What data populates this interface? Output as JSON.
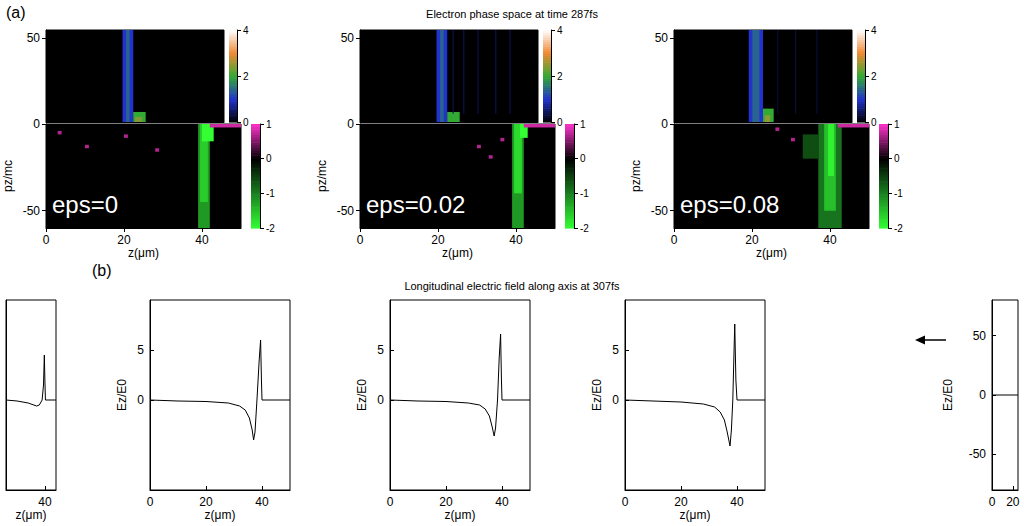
{
  "figure": {
    "panels": [
      {
        "letter": "(a)",
        "title": "Electron phase space at time 287fs"
      },
      {
        "letter": "(b)",
        "title": "Longitudinal electric field along axis at 307fs"
      }
    ]
  },
  "chart_data": [
    {
      "type": "heatmap",
      "annotation": "eps=0",
      "xlabel": "z(μm)",
      "ylabel": "pz/mc",
      "xlim": [
        0,
        50
      ],
      "xticks": [
        0,
        20,
        40
      ],
      "upper": {
        "ylim": [
          0,
          55
        ],
        "yticks": [
          50
        ],
        "cells": [
          [
            21.5,
            24.5,
            0,
            55,
            1.0
          ],
          [
            22.5,
            23.5,
            0,
            55,
            1.4
          ],
          [
            24.5,
            28,
            0,
            6,
            2.0
          ],
          [
            25,
            27,
            0,
            3,
            2.4
          ]
        ],
        "colorbar": {
          "range": [
            0,
            4
          ],
          "ticks": [
            0,
            2,
            4
          ]
        }
      },
      "lower": {
        "ylim": [
          -60,
          0
        ],
        "yticks": [
          -50,
          0
        ],
        "cells": [
          [
            39,
            42,
            -60,
            0,
            -1.2
          ],
          [
            39.5,
            41.5,
            -45,
            0,
            -1.6
          ],
          [
            40,
            43,
            -10,
            0,
            -2
          ],
          [
            42,
            50,
            -2,
            0,
            0.8
          ],
          [
            3,
            4,
            -6,
            -4,
            0.7
          ],
          [
            10,
            11,
            -14,
            -12,
            0.7
          ],
          [
            20,
            21,
            -8,
            -6,
            0.7
          ],
          [
            28,
            29,
            -16,
            -14,
            0.7
          ]
        ],
        "colorbar": {
          "range": [
            -2,
            1
          ],
          "ticks": [
            -2,
            -1,
            0,
            1
          ]
        }
      }
    },
    {
      "type": "heatmap",
      "annotation": "eps=0.02",
      "xlabel": "z(μm)",
      "ylabel": "pz/mc",
      "xlim": [
        0,
        50
      ],
      "xticks": [
        0,
        20,
        40
      ],
      "upper": {
        "ylim": [
          0,
          55
        ],
        "yticks": [
          50
        ],
        "cells": [
          [
            21.5,
            24.5,
            0,
            55,
            1.0
          ],
          [
            22.5,
            23.5,
            0,
            55,
            1.4
          ],
          [
            24.5,
            28,
            0,
            6,
            2.0
          ],
          [
            26,
            26.3,
            5,
            55,
            0.4
          ],
          [
            29,
            29.3,
            5,
            55,
            0.4
          ],
          [
            33,
            33.3,
            5,
            55,
            0.4
          ],
          [
            38,
            38.3,
            5,
            55,
            0.4
          ],
          [
            42,
            42.3,
            5,
            55,
            0.4
          ]
        ],
        "colorbar": {
          "range": [
            0,
            4
          ],
          "ticks": [
            0,
            2,
            4
          ]
        }
      },
      "lower": {
        "ylim": [
          -60,
          0
        ],
        "yticks": [
          -50,
          0
        ],
        "cells": [
          [
            39,
            42,
            -60,
            0,
            -1.2
          ],
          [
            39.5,
            41.5,
            -40,
            0,
            -1.7
          ],
          [
            41,
            43,
            -8,
            0,
            -2
          ],
          [
            42,
            50,
            -2,
            0,
            0.8
          ],
          [
            30,
            31,
            -14,
            -12,
            0.7
          ],
          [
            33,
            34,
            -20,
            -18,
            0.7
          ],
          [
            36,
            37,
            -10,
            -8,
            0.7
          ]
        ],
        "colorbar": {
          "range": [
            -2,
            1
          ],
          "ticks": [
            -2,
            -1,
            0,
            1
          ]
        }
      }
    },
    {
      "type": "heatmap",
      "annotation": "eps=0.08",
      "xlabel": "z(μm)",
      "ylabel": "pz/mc",
      "xlim": [
        0,
        50
      ],
      "xticks": [
        0,
        20,
        40
      ],
      "upper": {
        "ylim": [
          0,
          55
        ],
        "yticks": [
          50
        ],
        "cells": [
          [
            21,
            25,
            0,
            55,
            1.0
          ],
          [
            22,
            24,
            0,
            55,
            1.4
          ],
          [
            25,
            28,
            0,
            8,
            2.0
          ],
          [
            25.5,
            27,
            0,
            4,
            2.5
          ],
          [
            29,
            29.3,
            5,
            55,
            0.3
          ],
          [
            34,
            34.3,
            5,
            55,
            0.3
          ],
          [
            40,
            40.3,
            5,
            55,
            0.3
          ]
        ],
        "colorbar": {
          "range": [
            0,
            4
          ],
          "ticks": [
            0,
            2,
            4
          ]
        }
      },
      "lower": {
        "ylim": [
          -60,
          0
        ],
        "yticks": [
          -50,
          0
        ],
        "cells": [
          [
            37,
            43,
            -60,
            0,
            -0.9
          ],
          [
            38.5,
            41.5,
            -50,
            0,
            -1.5
          ],
          [
            39.5,
            41,
            -30,
            0,
            -1.9
          ],
          [
            33,
            37,
            -20,
            -6,
            -0.6
          ],
          [
            42,
            50,
            -2,
            0,
            0.8
          ],
          [
            30,
            31,
            -10,
            -8,
            0.7
          ],
          [
            26,
            27,
            -4,
            -2,
            0.7
          ]
        ],
        "colorbar": {
          "range": [
            -2,
            1
          ],
          "ticks": [
            -2,
            -1,
            0,
            1
          ]
        }
      }
    },
    {
      "type": "line",
      "xlabel": "z(μm)",
      "xlim": [
        26,
        44
      ],
      "xticks": [
        40
      ],
      "ylim": [
        -9,
        10
      ],
      "x": [
        26,
        30,
        34,
        37,
        38,
        39,
        39.5,
        39.8,
        40,
        40.2,
        44
      ],
      "values": [
        0,
        -0.1,
        -0.3,
        -0.6,
        -0.5,
        0,
        1.5,
        4.5,
        2,
        0,
        0
      ],
      "color": "#000000"
    },
    {
      "type": "line",
      "xlabel": "z(μm)",
      "ylabel": "Ez/E0",
      "xlim": [
        0,
        50
      ],
      "xticks": [
        0,
        20,
        40
      ],
      "ylim": [
        -9,
        10
      ],
      "yticks": [
        0,
        5
      ],
      "x": [
        0,
        10,
        20,
        28,
        32,
        34,
        35.5,
        36.5,
        37,
        37.5,
        38.2,
        39,
        39.5,
        39.8,
        40,
        50
      ],
      "values": [
        0,
        -0.1,
        -0.15,
        -0.3,
        -0.6,
        -1.0,
        -1.8,
        -3.0,
        -4.0,
        -3.2,
        0,
        4.0,
        6.0,
        2,
        0,
        0
      ],
      "color": "#000000"
    },
    {
      "type": "line",
      "xlabel": "z(μm)",
      "ylabel": "Ez/E0",
      "xlim": [
        0,
        50
      ],
      "xticks": [
        0,
        20,
        40
      ],
      "ylim": [
        -9,
        10
      ],
      "yticks": [
        0,
        5
      ],
      "x": [
        0,
        10,
        20,
        28,
        32,
        34,
        35.5,
        36.5,
        37.2,
        37.7,
        38.4,
        39,
        39.5,
        39.8,
        40,
        50
      ],
      "values": [
        0,
        -0.1,
        -0.15,
        -0.3,
        -0.5,
        -0.9,
        -1.6,
        -2.7,
        -3.6,
        -2.8,
        0,
        4.2,
        6.6,
        2,
        0,
        0
      ],
      "color": "#000000"
    },
    {
      "type": "line",
      "xlabel": "z(μm)",
      "ylabel": "Ez/E0",
      "xlim": [
        0,
        50
      ],
      "xticks": [
        0,
        20,
        40
      ],
      "ylim": [
        -9,
        10
      ],
      "yticks": [
        0,
        5
      ],
      "x": [
        0,
        10,
        20,
        28,
        32,
        34,
        35.5,
        36.5,
        37.5,
        38,
        38.5,
        39,
        39.2,
        39.6,
        40,
        50
      ],
      "values": [
        0,
        -0.1,
        -0.2,
        -0.4,
        -0.7,
        -1.2,
        -2.0,
        -3.2,
        -4.6,
        -3.0,
        0,
        5.5,
        7.6,
        2,
        0,
        0
      ],
      "color": "#000000"
    },
    {
      "type": "line",
      "ylabel": "Ez/E0",
      "xlim": [
        0,
        25
      ],
      "xticks": [
        0,
        20
      ],
      "ylim": [
        -80,
        80
      ],
      "yticks": [
        -50,
        0,
        50
      ],
      "x": [
        0,
        25
      ],
      "values": [
        0,
        0
      ],
      "color": "#000000"
    }
  ]
}
